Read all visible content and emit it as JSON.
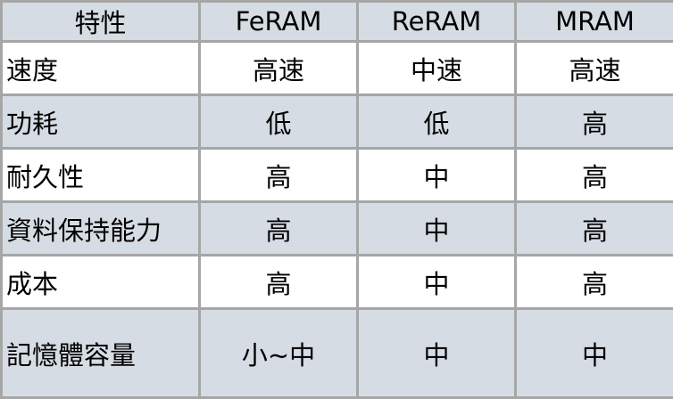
{
  "table": {
    "headers": [
      "特性",
      "FeRAM",
      "ReRAM",
      "MRAM"
    ],
    "rows": [
      [
        "速度",
        "高速",
        "中速",
        "高速"
      ],
      [
        "功耗",
        "低",
        "低",
        "高"
      ],
      [
        "耐久性",
        "高",
        "中",
        "高"
      ],
      [
        "資料保持能力",
        "高",
        "中",
        "高"
      ],
      [
        "成本",
        "高",
        "中",
        "高"
      ],
      [
        "記憶體容量",
        "小~中",
        "中",
        "中"
      ]
    ]
  },
  "colors": {
    "shaded_row": "#d6dce4",
    "border": "#a6a6a6"
  }
}
